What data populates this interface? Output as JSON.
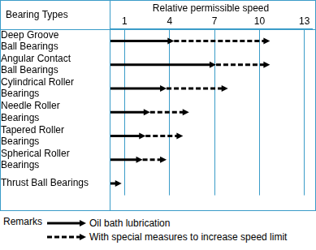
{
  "chart_data": {
    "type": "bar",
    "orientation": "horizontal",
    "x_label": "Relative permissible speed",
    "y_label": "Bearing Types",
    "legend_title": "Remarks",
    "categories": [
      "Deep Groove Ball Bearings",
      "Angular Contact Ball Bearings",
      "Cylindrical Roller Bearings",
      "Needle Roller Bearings",
      "Tapered Roller Bearings",
      "Spherical Roller Bearings",
      "Thrust Ball Bearings"
    ],
    "series": [
      {
        "name": "Oil bath lubrication",
        "color": "#000000",
        "line_style": "solid",
        "marker": "arrow",
        "values": [
          4.3,
          7.1,
          3.8,
          2.7,
          2.4,
          2.2,
          0.8
        ]
      },
      {
        "name": "With special measures to increase speed limit",
        "color": "#000000",
        "line_style": "dashed",
        "marker": "arrow",
        "values": [
          10.7,
          10.7,
          7.9,
          5.3,
          4.9,
          3.8,
          null
        ]
      }
    ],
    "xlim": [
      0,
      13.5
    ],
    "xticks": [
      1,
      4,
      7,
      10,
      13
    ],
    "grid": true,
    "legend": "bottom"
  }
}
